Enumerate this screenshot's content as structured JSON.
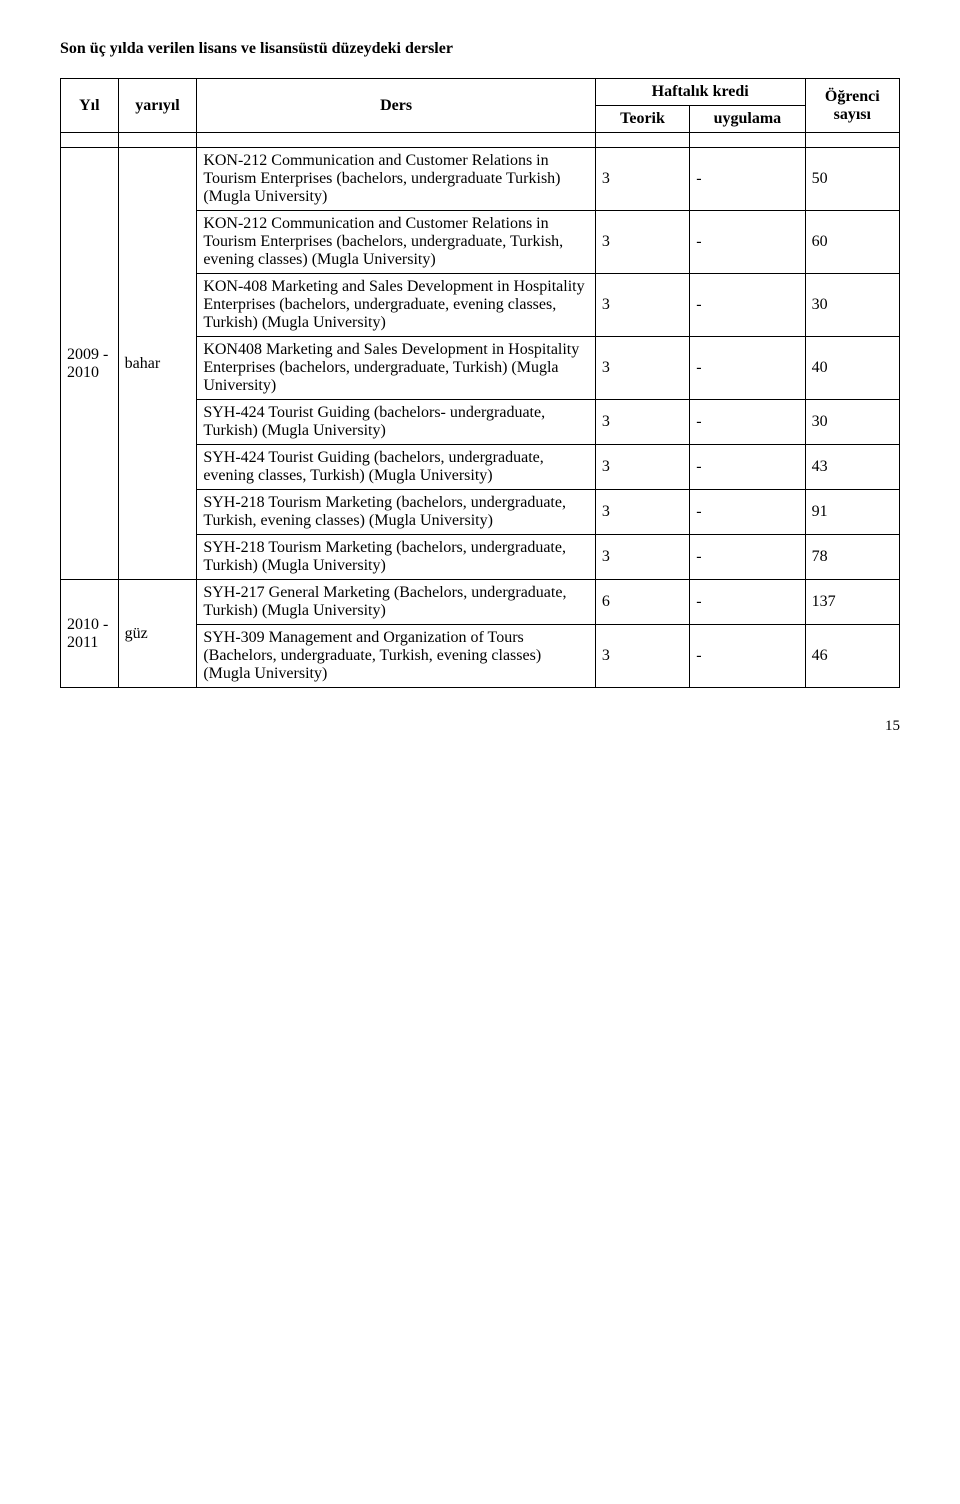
{
  "heading": "Son üç yılda verilen lisans ve lisansüstü düzeydeki dersler",
  "header": {
    "yil": "Yıl",
    "yariyil": "yarıyıl",
    "ders": "Ders",
    "haftalik": "Haftalık kredi",
    "teorik": "Teorik",
    "uygulama": "uygulama",
    "ogrenci": "Öğrenci sayısı"
  },
  "groups": [
    {
      "yil": "2009 - 2010",
      "yariyil": "bahar",
      "rows": [
        {
          "ders": "KON-212 Communication and Customer Relations in Tourism Enterprises (bachelors, undergraduate Turkish) (Mugla University)",
          "teorik": "3",
          "teorik_align": "left",
          "uyg": "-",
          "uyg_align": "center",
          "sayi": "50",
          "sayi_align": "right"
        },
        {
          "ders": "KON-212 Communication and Customer Relations in Tourism Enterprises (bachelors, undergraduate, Turkish, evening classes) (Mugla University)",
          "teorik": "3",
          "teorik_align": "left",
          "uyg": "-",
          "uyg_align": "center",
          "sayi": "60",
          "sayi_align": "right"
        },
        {
          "ders": "KON-408 Marketing and Sales Development in Hospitality Enterprises (bachelors, undergraduate, evening classes, Turkish) (Mugla University)",
          "teorik": "3",
          "teorik_align": "left",
          "uyg": "-",
          "uyg_align": "center",
          "sayi": "30",
          "sayi_align": "right"
        },
        {
          "ders": "KON408 Marketing and Sales Development in Hospitality Enterprises (bachelors, undergraduate, Turkish) (Mugla University)",
          "teorik": "3",
          "teorik_align": "left",
          "uyg": "-",
          "uyg_align": "center",
          "sayi": "40",
          "sayi_align": "right"
        },
        {
          "ders": " SYH-424 Tourist Guiding (bachelors- undergraduate, Turkish) (Mugla University)",
          "teorik": "3",
          "teorik_align": "center",
          "uyg": "-",
          "uyg_align": "center",
          "sayi": "30",
          "sayi_align": "center"
        },
        {
          "ders": "SYH-424 Tourist Guiding (bachelors, undergraduate, evening classes, Turkish) (Mugla University)",
          "teorik": "3",
          "teorik_align": "left",
          "uyg": "-",
          "uyg_align": "center",
          "sayi": "43",
          "sayi_align": "right"
        },
        {
          "ders": "SYH-218 Tourism Marketing (bachelors, undergraduate, Turkish, evening classes) (Mugla University)",
          "teorik": "3",
          "teorik_align": "left",
          "uyg": "-",
          "uyg_align": "center",
          "sayi": "91",
          "sayi_align": "right"
        },
        {
          "ders": "SYH-218 Tourism Marketing (bachelors, undergraduate, Turkish) (Mugla University)",
          "teorik": "3",
          "teorik_align": "center",
          "uyg": "-",
          "uyg_align": "center",
          "sayi": "78",
          "sayi_align": "center"
        }
      ]
    },
    {
      "yil": "2010 - 2011",
      "yariyil": "güz",
      "rows": [
        {
          "ders": " SYH-217 General Marketing (Bachelors, undergraduate, Turkish) (Mugla University)",
          "teorik": "6",
          "teorik_align": "center",
          "uyg": "-",
          "uyg_align": "center",
          "sayi": "137",
          "sayi_align": "center"
        },
        {
          "ders": "SYH-309 Management and Organization of Tours (Bachelors, undergraduate, Turkish, evening classes) (Mugla University)",
          "teorik": "3",
          "teorik_align": "left",
          "uyg": "-",
          "uyg_align": "center",
          "sayi": "46",
          "sayi_align": "right"
        }
      ]
    }
  ],
  "page_number": "15"
}
